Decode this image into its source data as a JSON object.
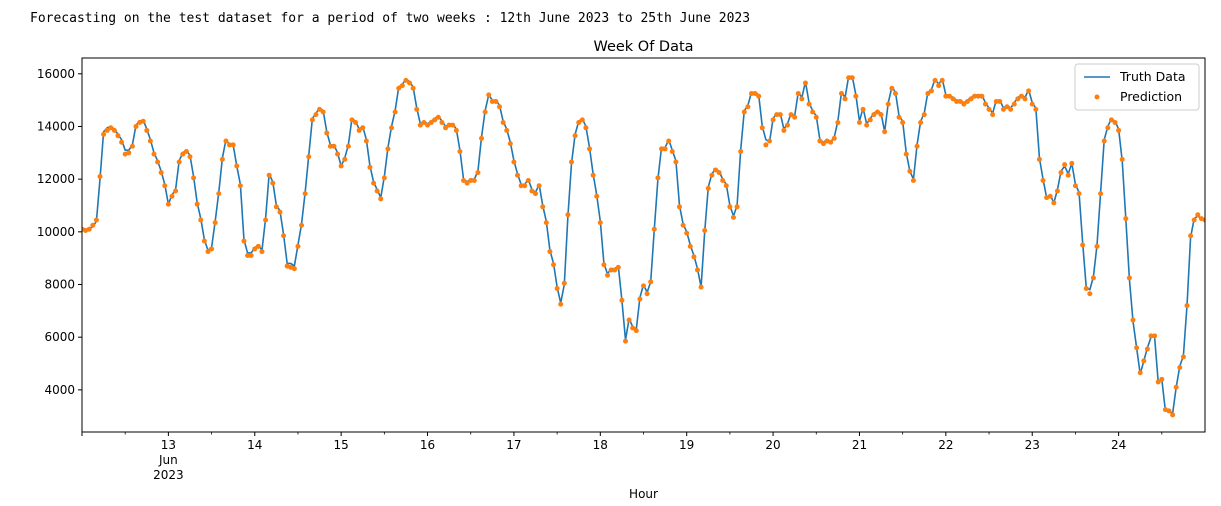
{
  "caption": "Forecasting on the test dataset for a period of two weeks : 12th June 2023 to 25th June 2023",
  "colors": {
    "truth": "#1f77b4",
    "prediction": "#ff7f0e"
  },
  "chart_data": {
    "type": "line",
    "title": "Week Of Data",
    "xlabel": "Hour",
    "ylabel": "",
    "xlim": [
      12.0,
      25.0
    ],
    "ylim": [
      2400,
      16600
    ],
    "x_ticks": [
      {
        "x": 13,
        "label": "13",
        "sub1": "Jun",
        "sub2": "2023"
      },
      {
        "x": 14,
        "label": "14"
      },
      {
        "x": 15,
        "label": "15"
      },
      {
        "x": 16,
        "label": "16"
      },
      {
        "x": 17,
        "label": "17"
      },
      {
        "x": 18,
        "label": "18"
      },
      {
        "x": 19,
        "label": "19"
      },
      {
        "x": 20,
        "label": "20"
      },
      {
        "x": 21,
        "label": "21"
      },
      {
        "x": 22,
        "label": "22"
      },
      {
        "x": 23,
        "label": "23"
      },
      {
        "x": 24,
        "label": "24"
      }
    ],
    "y_ticks": [
      4000,
      6000,
      8000,
      10000,
      12000,
      14000,
      16000
    ],
    "y_tick_labels": [
      "4000",
      "6000",
      "8000",
      "10000",
      "12000",
      "14000",
      "16000"
    ],
    "legend": {
      "position": "top-right",
      "entries": [
        "Truth Data",
        "Prediction"
      ]
    },
    "series": [
      {
        "name": "Truth Data",
        "style": "line",
        "x_start": 12.0,
        "step_hours": 1,
        "values": [
          10150,
          10100,
          10100,
          10200,
          10400,
          12000,
          13800,
          13950,
          14000,
          13900,
          13700,
          13500,
          13100,
          13100,
          13300,
          14050,
          14200,
          14250,
          13900,
          13500,
          13000,
          12700,
          12300,
          11800,
          11050,
          11400,
          11600,
          12700,
          13000,
          13100,
          12900,
          12100,
          11100,
          10500,
          9700,
          9300,
          9400,
          10400,
          11500,
          12800,
          13500,
          13300,
          13300,
          12500,
          11800,
          9700,
          9200,
          9200,
          9400,
          9500,
          9300,
          10500,
          12200,
          11900,
          11000,
          10800,
          9900,
          8800,
          8800,
          8700,
          9500,
          10300,
          11500,
          12900,
          14300,
          14500,
          14700,
          14600,
          13800,
          13300,
          13300,
          13000,
          12500,
          12800,
          13300,
          14300,
          14200,
          13900,
          14000,
          13500,
          12500,
          11900,
          11600,
          11300,
          12100,
          13200,
          14000,
          14600,
          15500,
          15600,
          15800,
          15700,
          15500,
          14700,
          14100,
          14200,
          14100,
          14200,
          14300,
          14400,
          14200,
          14000,
          14100,
          14100,
          13900,
          13100,
          12000,
          11900,
          12000,
          12000,
          12300,
          13600,
          14600,
          15200,
          15000,
          15000,
          14800,
          14200,
          13900,
          13400,
          12700,
          12200,
          11800,
          11800,
          12000,
          11600,
          11500,
          11800,
          11000,
          10400,
          9300,
          8800,
          7900,
          7300,
          8000,
          10600,
          12600,
          13700,
          14200,
          14300,
          14000,
          13200,
          12200,
          11400,
          10400,
          8800,
          8400,
          8600,
          8600,
          8700,
          7400,
          5900,
          6700,
          6400,
          6300,
          7500,
          8000,
          7700,
          8100,
          10100,
          12000,
          13200,
          13200,
          13500,
          13100,
          12700,
          11000,
          10300,
          10000,
          9500,
          9100,
          8600,
          7900,
          10000,
          11700,
          12200,
          12400,
          12300,
          12000,
          11800,
          11000,
          10600,
          11000,
          13100,
          14600,
          14800,
          15300,
          15300,
          15200,
          14000,
          13500,
          13400,
          14300,
          14500,
          14500,
          13900,
          14100,
          14500,
          14400,
          15300,
          15100,
          15700,
          14900,
          14600,
          14400,
          13500,
          13400,
          13500,
          13400,
          13600,
          14200,
          15300,
          15100,
          15900,
          15900,
          15200,
          14200,
          14700,
          14100,
          14300,
          14500,
          14600,
          14500,
          13800,
          14900,
          15500,
          15300,
          14400,
          14200,
          13000,
          12300,
          12000,
          13300,
          14200,
          14500,
          15300,
          15400,
          15800,
          15600,
          15800,
          15200,
          15200,
          15100,
          15000,
          15000,
          14900,
          15000,
          15100,
          15200,
          15200,
          15200,
          14900,
          14700,
          14500,
          15000,
          15000,
          14700,
          14800,
          14700,
          14900,
          15100,
          15200,
          15100,
          15400,
          14900,
          14700,
          12800,
          12000,
          11300,
          11400,
          11100,
          11600,
          12300,
          12500,
          12200,
          12600,
          11800,
          11500,
          9600,
          7900,
          7800,
          8300,
          9500,
          11500,
          13500,
          14000,
          14300,
          14200,
          13900,
          12700,
          10500,
          8200,
          6600,
          5600,
          4600,
          5100,
          5600,
          6000,
          6000,
          4300,
          4400,
          3200,
          3200,
          3100,
          4100,
          4900,
          5300,
          7200,
          9800,
          10500,
          10600,
          10500,
          10400,
          10100
        ]
      },
      {
        "name": "Prediction",
        "style": "dots",
        "x_start": 12.0,
        "step_hours": 1,
        "values": [
          10100,
          10050,
          10100,
          10250,
          10450,
          12100,
          13700,
          13850,
          13950,
          13850,
          13650,
          13400,
          12950,
          13000,
          13250,
          14000,
          14150,
          14200,
          13850,
          13450,
          12950,
          12650,
          12250,
          11750,
          11050,
          11350,
          11550,
          12650,
          12950,
          13050,
          12850,
          12050,
          11050,
          10450,
          9650,
          9250,
          9350,
          10350,
          11450,
          12750,
          13450,
          13300,
          13300,
          12500,
          11750,
          9650,
          9100,
          9100,
          9350,
          9450,
          9250,
          10450,
          12150,
          11850,
          10950,
          10750,
          9850,
          8700,
          8650,
          8600,
          9450,
          10250,
          11450,
          12850,
          14250,
          14450,
          14650,
          14550,
          13750,
          13250,
          13250,
          12950,
          12500,
          12750,
          13250,
          14250,
          14150,
          13850,
          13950,
          13450,
          12450,
          11850,
          11550,
          11250,
          12050,
          13150,
          13950,
          14550,
          15450,
          15550,
          15750,
          15650,
          15450,
          14650,
          14050,
          14150,
          14050,
          14150,
          14250,
          14350,
          14150,
          13950,
          14050,
          14050,
          13850,
          13050,
          11950,
          11850,
          11950,
          11950,
          12250,
          13550,
          14550,
          15200,
          14950,
          14950,
          14750,
          14150,
          13850,
          13350,
          12650,
          12150,
          11750,
          11750,
          11950,
          11550,
          11450,
          11750,
          10950,
          10350,
          9250,
          8750,
          7850,
          7250,
          8050,
          10650,
          12650,
          13650,
          14150,
          14250,
          13950,
          13150,
          12150,
          11350,
          10350,
          8750,
          8350,
          8550,
          8550,
          8650,
          7400,
          5850,
          6650,
          6350,
          6250,
          7450,
          7950,
          7650,
          8100,
          10100,
          12050,
          13150,
          13150,
          13450,
          13050,
          12650,
          10950,
          10250,
          9950,
          9450,
          9050,
          8550,
          7900,
          10050,
          11650,
          12150,
          12350,
          12250,
          11950,
          11750,
          10950,
          10550,
          10950,
          13050,
          14550,
          14750,
          15250,
          15250,
          15150,
          13950,
          13300,
          13450,
          14250,
          14450,
          14450,
          13850,
          14050,
          14450,
          14350,
          15250,
          15050,
          15650,
          14850,
          14550,
          14350,
          13450,
          13350,
          13450,
          13400,
          13550,
          14150,
          15250,
          15050,
          15850,
          15850,
          15150,
          14150,
          14650,
          14050,
          14250,
          14450,
          14550,
          14450,
          13800,
          14850,
          15450,
          15250,
          14350,
          14150,
          12950,
          12300,
          11950,
          13250,
          14150,
          14450,
          15250,
          15350,
          15750,
          15550,
          15750,
          15150,
          15150,
          15050,
          14950,
          14950,
          14850,
          14950,
          15050,
          15150,
          15150,
          15150,
          14850,
          14650,
          14450,
          14950,
          14950,
          14650,
          14750,
          14650,
          14850,
          15050,
          15150,
          15050,
          15350,
          14850,
          14650,
          12750,
          11950,
          11300,
          11350,
          11100,
          11550,
          12250,
          12550,
          12150,
          12600,
          11750,
          11450,
          9500,
          7850,
          7650,
          8250,
          9450,
          11450,
          13450,
          13950,
          14250,
          14150,
          13850,
          12750,
          10500,
          8250,
          6650,
          5600,
          4650,
          5100,
          5550,
          6050,
          6050,
          4300,
          4400,
          3250,
          3200,
          3050,
          4100,
          4850,
          5250,
          7200,
          9850,
          10450,
          10650,
          10500,
          10450,
          10200
        ]
      }
    ]
  }
}
